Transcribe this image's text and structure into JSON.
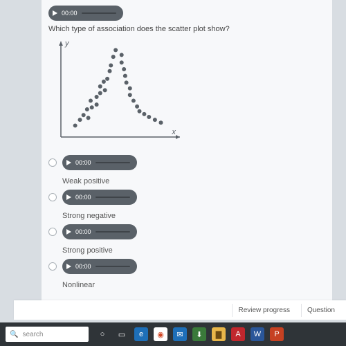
{
  "audio": {
    "time": "00:00"
  },
  "question": "Which type of association does the scatter plot show?",
  "chart": {
    "type": "scatter",
    "xlabel": "x",
    "ylabel": "y",
    "xlim": [
      0,
      10
    ],
    "ylim": [
      0,
      10
    ],
    "point_radius": 3,
    "point_color": "#5a6168",
    "axis_color": "#5a6168",
    "background": "#f7f8fa",
    "points": [
      [
        1.2,
        1.2
      ],
      [
        1.6,
        1.8
      ],
      [
        1.9,
        2.3
      ],
      [
        2.3,
        2.0
      ],
      [
        2.2,
        2.9
      ],
      [
        2.6,
        3.1
      ],
      [
        2.5,
        3.8
      ],
      [
        3.0,
        3.4
      ],
      [
        3.0,
        4.2
      ],
      [
        3.3,
        4.6
      ],
      [
        3.3,
        5.3
      ],
      [
        3.7,
        4.9
      ],
      [
        3.6,
        5.8
      ],
      [
        3.9,
        6.1
      ],
      [
        4.1,
        6.9
      ],
      [
        4.2,
        7.5
      ],
      [
        4.4,
        8.4
      ],
      [
        4.6,
        9.1
      ],
      [
        5.1,
        8.6
      ],
      [
        5.1,
        7.8
      ],
      [
        5.3,
        7.1
      ],
      [
        5.4,
        6.4
      ],
      [
        5.5,
        5.7
      ],
      [
        5.8,
        5.1
      ],
      [
        5.8,
        4.4
      ],
      [
        6.1,
        3.8
      ],
      [
        6.4,
        3.2
      ],
      [
        6.6,
        2.7
      ],
      [
        7.0,
        2.4
      ],
      [
        7.4,
        2.1
      ],
      [
        7.9,
        1.8
      ],
      [
        8.4,
        1.5
      ]
    ]
  },
  "options": [
    {
      "label": "Weak positive"
    },
    {
      "label": "Strong negative"
    },
    {
      "label": "Strong positive"
    },
    {
      "label": "Nonlinear"
    }
  ],
  "footer": {
    "review": "Review progress",
    "question": "Question"
  },
  "taskbar": {
    "search_placeholder": "search",
    "icons": [
      {
        "name": "cortana-icon",
        "bg": "#2f3438",
        "fg": "#ffffff",
        "glyph": "○"
      },
      {
        "name": "taskview-icon",
        "bg": "#2f3438",
        "fg": "#ffffff",
        "glyph": "▭"
      },
      {
        "name": "edge-icon",
        "bg": "#1e6fb8",
        "fg": "#ffffff",
        "glyph": "e"
      },
      {
        "name": "chrome-icon",
        "bg": "#ffffff",
        "fg": "#d24726",
        "glyph": "◉"
      },
      {
        "name": "mail-icon",
        "bg": "#1e6fb8",
        "fg": "#ffffff",
        "glyph": "✉"
      },
      {
        "name": "store-icon",
        "bg": "#3a7a3a",
        "fg": "#ffffff",
        "glyph": "⬇"
      },
      {
        "name": "explorer-icon",
        "bg": "#e8b64a",
        "fg": "#6b4a12",
        "glyph": "▇"
      },
      {
        "name": "acrobat-icon",
        "bg": "#c1272d",
        "fg": "#ffffff",
        "glyph": "A"
      },
      {
        "name": "word-icon",
        "bg": "#2a5699",
        "fg": "#ffffff",
        "glyph": "W"
      },
      {
        "name": "powerpoint-icon",
        "bg": "#c64122",
        "fg": "#ffffff",
        "glyph": "P"
      }
    ]
  }
}
